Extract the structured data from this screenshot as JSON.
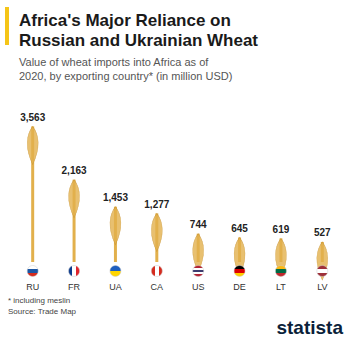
{
  "chart_data": {
    "type": "bar",
    "title": "Africa's Major Reliance on Russian and Ukrainian Wheat",
    "subtitle": "Value of wheat imports into Africa as of 2020, by exporting country* (in million USD)",
    "categories": [
      "RU",
      "FR",
      "UA",
      "CA",
      "US",
      "DE",
      "LT",
      "LV"
    ],
    "values": [
      3563,
      2163,
      1453,
      1277,
      744,
      645,
      619,
      527
    ],
    "value_labels": [
      "3,563",
      "2,163",
      "1,453",
      "1,277",
      "744",
      "645",
      "619",
      "527"
    ],
    "color": "#e2b04c",
    "ylim": [
      0,
      3600
    ],
    "grid": false,
    "data_labels": true,
    "tick_labels": "x",
    "footnote": "* including meslin",
    "source": "Source: Trade Map",
    "brand": "statista"
  }
}
